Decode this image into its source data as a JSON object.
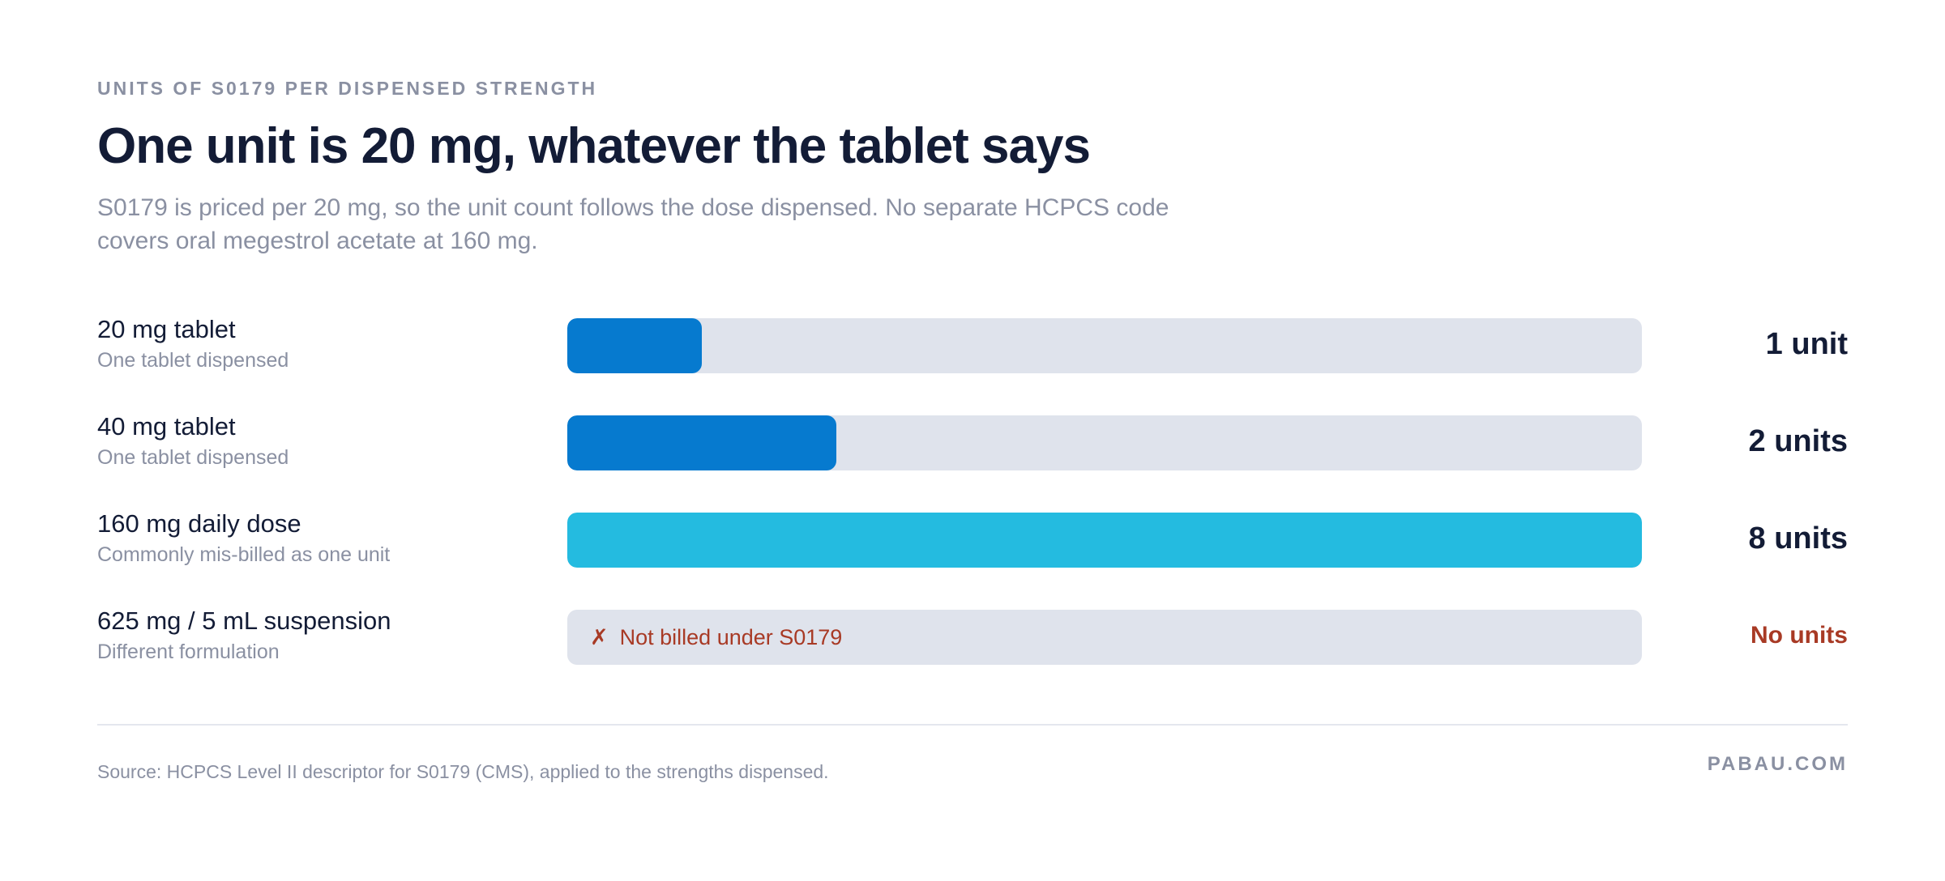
{
  "eyebrow": "UNITS OF S0179 PER DISPENSED STRENGTH",
  "title": "One unit is 20 mg, whatever the tablet says",
  "subtitle": "S0179 is priced per 20 mg, so the unit count follows the dose dispensed. No separate HCPCS code covers oral megestrol acetate at 160 mg.",
  "source": "Source: HCPCS Level II descriptor for S0179 (CMS), applied to the strengths dispensed.",
  "brand": "PABAU.COM",
  "colors": {
    "primary_bar": "#067acf",
    "highlight_bar": "#24bbe0",
    "track": "#dfe3ec",
    "negative": "#a83a25"
  },
  "chart_data": {
    "type": "bar",
    "orientation": "horizontal",
    "max_units": 8,
    "rows": [
      {
        "label": "20 mg tablet",
        "note": "One tablet dispensed",
        "units": 1,
        "value_label": "1 unit",
        "color": "#067acf"
      },
      {
        "label": "40 mg tablet",
        "note": "One tablet dispensed",
        "units": 2,
        "value_label": "2 units",
        "color": "#067acf"
      },
      {
        "label": "160 mg daily dose",
        "note": "Commonly mis-billed as one unit",
        "units": 8,
        "value_label": "8 units",
        "color": "#24bbe0"
      },
      {
        "label": "625 mg / 5 mL suspension",
        "note": "Different formulation",
        "units": 0,
        "value_label": "No units",
        "status": "Not billed under S0179",
        "status_icon": "✗",
        "color": "#a83a25"
      }
    ]
  }
}
